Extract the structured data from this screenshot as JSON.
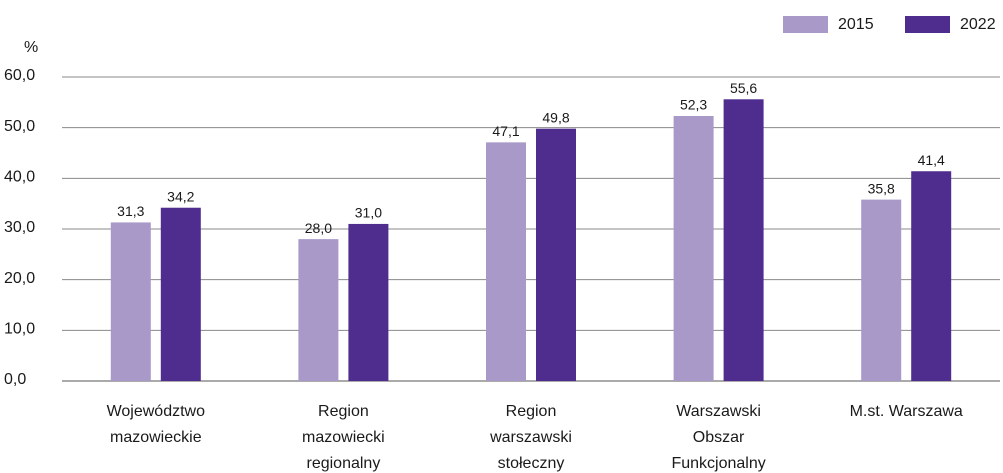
{
  "chart_data": {
    "type": "bar",
    "y_label": "%",
    "categories": [
      [
        "Województwo",
        "mazowieckie"
      ],
      [
        "Region",
        "mazowiecki",
        "regionalny"
      ],
      [
        "Region",
        "warszawski",
        "stołeczny"
      ],
      [
        "Warszawski",
        "Obszar",
        "Funkcjonalny"
      ],
      [
        "M.st. Warszawa"
      ]
    ],
    "series": [
      {
        "name": "2015",
        "color": "#a899c8",
        "values": [
          31.3,
          28.0,
          47.1,
          52.3,
          35.8
        ],
        "value_labels": [
          "31,3",
          "28,0",
          "47,1",
          "52,3",
          "35,8"
        ]
      },
      {
        "name": "2022",
        "color": "#4f2d8f",
        "values": [
          34.2,
          31.0,
          49.8,
          55.6,
          41.4
        ],
        "value_labels": [
          "34,2",
          "31,0",
          "49,8",
          "55,6",
          "41,4"
        ]
      }
    ],
    "ylim": [
      0,
      60
    ],
    "yticks": [
      {
        "value": 0,
        "label": "0,0"
      },
      {
        "value": 10,
        "label": "10,0"
      },
      {
        "value": 20,
        "label": "20,0"
      },
      {
        "value": 30,
        "label": "30,0"
      },
      {
        "value": 40,
        "label": "40,0"
      },
      {
        "value": 50,
        "label": "50,0"
      },
      {
        "value": 60,
        "label": "60,0"
      }
    ],
    "grid": true,
    "legend": "top-right"
  }
}
